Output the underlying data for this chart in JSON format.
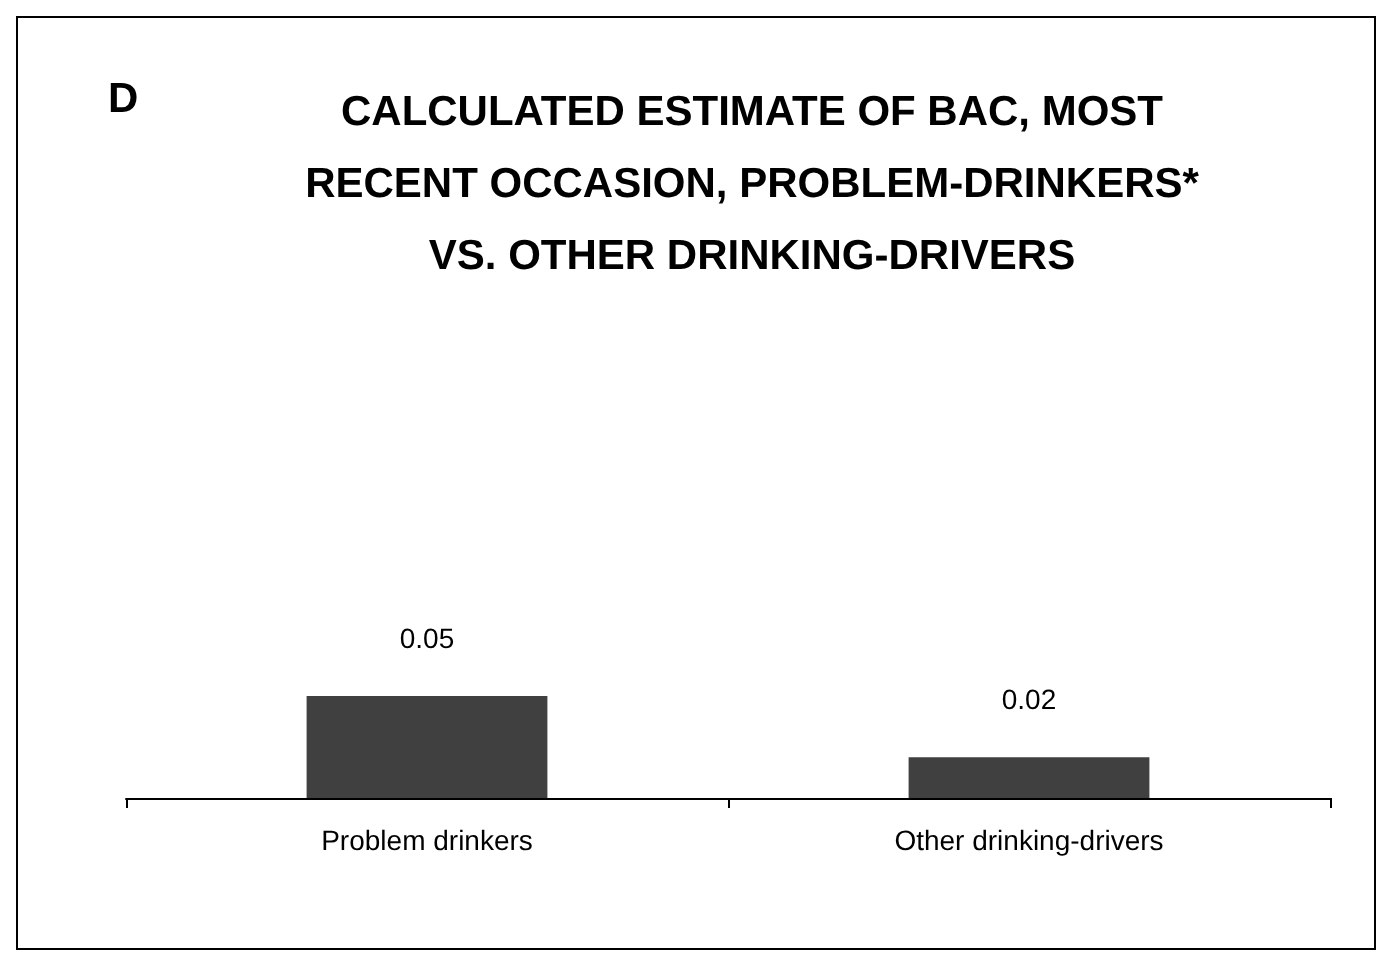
{
  "chart_data": {
    "type": "bar",
    "title": "CALCULATED ESTIMATE OF BAC, MOST\nRECENT OCCASION, PROBLEM-DRINKERS*\nVS. OTHER DRINKING-DRIVERS",
    "annotations": [
      "D"
    ],
    "categories": [
      "Problem drinkers",
      "Other drinking-drivers"
    ],
    "values": [
      0.05,
      0.02
    ],
    "color": "#404040",
    "data_labels": true,
    "tick_labels": "x"
  }
}
